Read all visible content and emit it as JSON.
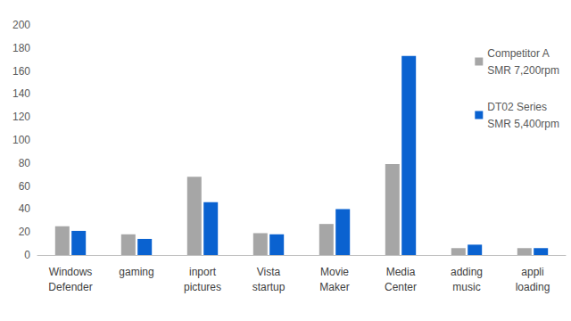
{
  "chart_data": {
    "type": "bar",
    "categories": [
      "Windows\nDefender",
      "gaming",
      "inport\npictures",
      "Vista\nstartup",
      "Movie\nMaker",
      "Media\nCenter",
      "adding\nmusic",
      "appli\nloading"
    ],
    "series": [
      {
        "name": "Competitor A\nSMR 7,200rpm",
        "color": "#a6a6a6",
        "values": [
          25,
          18,
          68,
          19,
          27,
          79,
          6,
          6
        ]
      },
      {
        "name": "DT02 Series\nSMR 5,400rpm",
        "color": "#0a62d0",
        "values": [
          21,
          14,
          46,
          18,
          40,
          173,
          9,
          6
        ]
      }
    ],
    "ylim": [
      0,
      200
    ],
    "yticks": [
      0,
      20,
      40,
      60,
      80,
      100,
      120,
      140,
      160,
      180,
      200
    ],
    "grid": false,
    "legend": "upper right"
  }
}
